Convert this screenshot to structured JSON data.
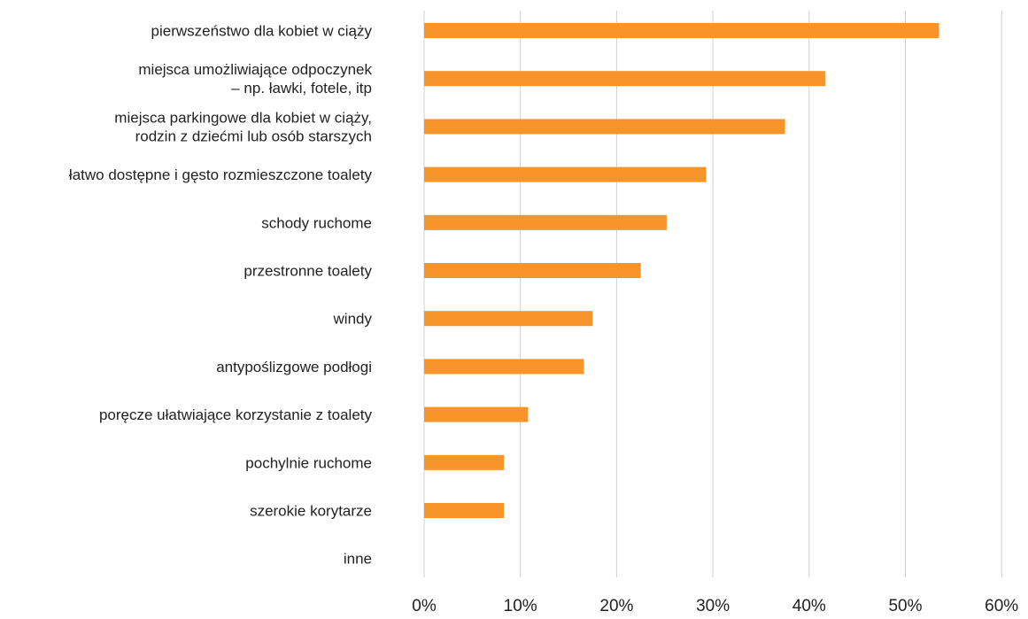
{
  "chart_data": {
    "type": "bar",
    "orientation": "horizontal",
    "categories": [
      [
        "pierwszeństwo dla kobiet w ciąży"
      ],
      [
        "miejsca umożliwiające odpoczynek",
        "– np. ławki, fotele, itp"
      ],
      [
        "miejsca parkingowe dla kobiet w ciąży,",
        "rodzin z dziećmi lub osób starszych"
      ],
      [
        "łatwo dostępne i gęsto rozmieszczone toalety"
      ],
      [
        "schody ruchome"
      ],
      [
        "przestronne toalety"
      ],
      [
        "windy"
      ],
      [
        "antypoślizgowe podłogi"
      ],
      [
        "poręcze ułatwiające korzystanie z toalety"
      ],
      [
        "pochylnie ruchome"
      ],
      [
        "szerokie korytarze"
      ],
      [
        "inne"
      ]
    ],
    "values": [
      53.5,
      41.7,
      37.5,
      29.3,
      25.2,
      22.5,
      17.5,
      16.6,
      10.8,
      8.3,
      8.3,
      0
    ],
    "xlim": [
      0,
      60
    ],
    "ticks": [
      0,
      10,
      20,
      30,
      40,
      50,
      60
    ],
    "tick_labels": [
      "0%",
      "10%",
      "20%",
      "30%",
      "40%",
      "50%",
      "60%"
    ],
    "title": "",
    "xlabel": "",
    "ylabel": "",
    "grid": "vertical",
    "legend": "none",
    "colors": {
      "bar": "#F7942A",
      "grid": "#D0D0D0",
      "text": "#222222"
    }
  }
}
